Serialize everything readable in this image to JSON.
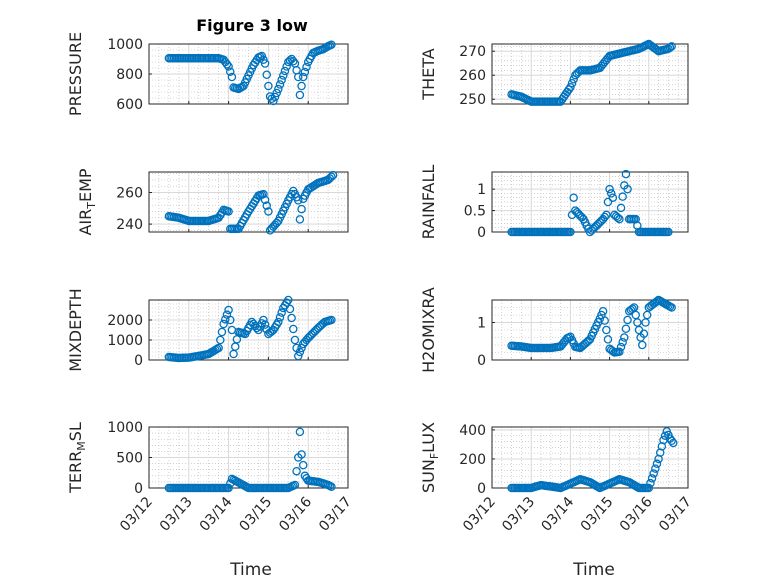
{
  "chart_data": {
    "type": "scatter",
    "title": "Figure 3 low",
    "marker": "circle",
    "marker_color": "#0072BD",
    "xlabel": "Time",
    "x_ticks": [
      "03/12",
      "03/13",
      "03/14",
      "03/15",
      "03/16",
      "03/17"
    ],
    "grid": "on (major and minor)",
    "panels": [
      {
        "name": "pressure",
        "ylabel": "PRESSURE",
        "ylim": [
          600,
          1000
        ],
        "yticks": [
          "600",
          "800",
          "1000"
        ],
        "points": [
          [
            "03/12 12:00",
            905
          ],
          [
            "03/12 18:00",
            905
          ],
          [
            "03/13 00:00",
            905
          ],
          [
            "03/13 06:00",
            905
          ],
          [
            "03/13 12:00",
            905
          ],
          [
            "03/13 18:00",
            905
          ],
          [
            "03/13 21:00",
            895
          ],
          [
            "03/14 00:00",
            850
          ],
          [
            "03/14 02:00",
            780
          ],
          [
            "03/14 03:00",
            710
          ],
          [
            "03/14 06:00",
            700
          ],
          [
            "03/14 09:00",
            720
          ],
          [
            "03/14 12:00",
            790
          ],
          [
            "03/14 15:00",
            860
          ],
          [
            "03/14 18:00",
            910
          ],
          [
            "03/14 20:00",
            920
          ],
          [
            "03/14 22:00",
            870
          ],
          [
            "03/15 00:00",
            720
          ],
          [
            "03/15 01:00",
            650
          ],
          [
            "03/15 03:00",
            620
          ],
          [
            "03/15 06:00",
            700
          ],
          [
            "03/15 09:00",
            790
          ],
          [
            "03/15 12:00",
            880
          ],
          [
            "03/15 14:00",
            900
          ],
          [
            "03/15 16:00",
            870
          ],
          [
            "03/15 18:00",
            780
          ],
          [
            "03/15 19:00",
            660
          ],
          [
            "03/15 21:00",
            780
          ],
          [
            "03/16 00:00",
            880
          ],
          [
            "03/16 03:00",
            940
          ],
          [
            "03/16 06:00",
            955
          ],
          [
            "03/16 09:00",
            965
          ],
          [
            "03/16 12:00",
            985
          ],
          [
            "03/16 14:00",
            995
          ]
        ]
      },
      {
        "name": "theta",
        "ylabel": "THETA",
        "ylim": [
          248,
          273
        ],
        "yticks": [
          "250",
          "260",
          "270"
        ],
        "points": [
          [
            "03/12 12:00",
            252
          ],
          [
            "03/12 18:00",
            251
          ],
          [
            "03/13 00:00",
            249
          ],
          [
            "03/13 06:00",
            249
          ],
          [
            "03/13 12:00",
            249
          ],
          [
            "03/13 18:00",
            249
          ],
          [
            "03/14 00:00",
            255
          ],
          [
            "03/14 03:00",
            260
          ],
          [
            "03/14 06:00",
            262
          ],
          [
            "03/14 12:00",
            262
          ],
          [
            "03/14 18:00",
            263
          ],
          [
            "03/15 00:00",
            268
          ],
          [
            "03/15 06:00",
            269
          ],
          [
            "03/15 12:00",
            270
          ],
          [
            "03/15 18:00",
            271
          ],
          [
            "03/16 00:00",
            273
          ],
          [
            "03/16 06:00",
            270
          ],
          [
            "03/16 12:00",
            271
          ],
          [
            "03/16 14:00",
            272
          ]
        ]
      },
      {
        "name": "air-temp",
        "ylabel": "AIR_TEMP",
        "ylim": [
          235,
          273
        ],
        "yticks": [
          "240",
          "260"
        ],
        "points": [
          [
            "03/12 12:00",
            245
          ],
          [
            "03/12 18:00",
            244
          ],
          [
            "03/13 00:00",
            242
          ],
          [
            "03/13 06:00",
            242
          ],
          [
            "03/13 12:00",
            242
          ],
          [
            "03/13 18:00",
            244
          ],
          [
            "03/13 21:00",
            249
          ],
          [
            "03/14 00:00",
            248
          ],
          [
            "03/14 01:00",
            237
          ],
          [
            "03/14 06:00",
            237
          ],
          [
            "03/14 12:00",
            248
          ],
          [
            "03/14 18:00",
            258
          ],
          [
            "03/14 21:00",
            259
          ],
          [
            "03/15 00:00",
            248
          ],
          [
            "03/15 01:00",
            236
          ],
          [
            "03/15 06:00",
            242
          ],
          [
            "03/15 12:00",
            255
          ],
          [
            "03/15 15:00",
            261
          ],
          [
            "03/15 18:00",
            255
          ],
          [
            "03/15 19:00",
            243
          ],
          [
            "03/15 21:00",
            256
          ],
          [
            "03/16 00:00",
            262
          ],
          [
            "03/16 06:00",
            266
          ],
          [
            "03/16 12:00",
            268
          ],
          [
            "03/16 15:00",
            271
          ]
        ]
      },
      {
        "name": "rainfall",
        "ylabel": "RAINFALL",
        "ylim": [
          0,
          1.4
        ],
        "yticks": [
          "0",
          "0.5",
          "1"
        ],
        "points": [
          [
            "03/12 12:00",
            0
          ],
          [
            "03/13 00:00",
            0
          ],
          [
            "03/13 12:00",
            0
          ],
          [
            "03/14 00:00",
            0
          ],
          [
            "03/14 02:00",
            0.8
          ],
          [
            "03/14 03:00",
            0.5
          ],
          [
            "03/14 08:00",
            0.3
          ],
          [
            "03/14 12:00",
            0
          ],
          [
            "03/14 20:00",
            0.3
          ],
          [
            "03/14 22:00",
            0.4
          ],
          [
            "03/15 00:00",
            1.0
          ],
          [
            "03/15 02:00",
            0.8
          ],
          [
            "03/15 03:00",
            0.4
          ],
          [
            "03/15 06:00",
            0.3
          ],
          [
            "03/15 10:00",
            1.35
          ],
          [
            "03/15 11:00",
            1.0
          ],
          [
            "03/15 12:00",
            0.3
          ],
          [
            "03/15 16:00",
            0.3
          ],
          [
            "03/15 18:00",
            0
          ],
          [
            "03/16 00:00",
            0
          ],
          [
            "03/16 12:00",
            0
          ]
        ]
      },
      {
        "name": "mixdepth",
        "ylabel": "MIXDEPTH",
        "ylim": [
          0,
          3000
        ],
        "yticks": [
          "0",
          "1000",
          "2000"
        ],
        "points": [
          [
            "03/12 12:00",
            150
          ],
          [
            "03/12 18:00",
            100
          ],
          [
            "03/13 00:00",
            120
          ],
          [
            "03/13 06:00",
            200
          ],
          [
            "03/13 12:00",
            300
          ],
          [
            "03/13 18:00",
            600
          ],
          [
            "03/13 21:00",
            1800
          ],
          [
            "03/14 00:00",
            2500
          ],
          [
            "03/14 02:00",
            1500
          ],
          [
            "03/14 03:00",
            300
          ],
          [
            "03/14 06:00",
            1400
          ],
          [
            "03/14 10:00",
            1300
          ],
          [
            "03/14 14:00",
            1900
          ],
          [
            "03/14 18:00",
            1500
          ],
          [
            "03/14 21:00",
            2000
          ],
          [
            "03/15 00:00",
            1300
          ],
          [
            "03/15 03:00",
            1500
          ],
          [
            "03/15 06:00",
            1900
          ],
          [
            "03/15 09:00",
            2600
          ],
          [
            "03/15 12:00",
            3000
          ],
          [
            "03/15 14:00",
            2100
          ],
          [
            "03/15 16:00",
            1000
          ],
          [
            "03/15 18:00",
            200
          ],
          [
            "03/15 21:00",
            800
          ],
          [
            "03/16 00:00",
            1100
          ],
          [
            "03/16 06:00",
            1600
          ],
          [
            "03/16 10:00",
            1900
          ],
          [
            "03/16 14:00",
            2000
          ]
        ]
      },
      {
        "name": "h2omixra",
        "ylabel": "H2OMIXRA",
        "ylim": [
          0,
          1.6
        ],
        "yticks": [
          "0",
          "1"
        ],
        "points": [
          [
            "03/12 12:00",
            0.38
          ],
          [
            "03/12 18:00",
            0.36
          ],
          [
            "03/13 00:00",
            0.32
          ],
          [
            "03/13 06:00",
            0.32
          ],
          [
            "03/13 12:00",
            0.32
          ],
          [
            "03/13 18:00",
            0.36
          ],
          [
            "03/13 22:00",
            0.58
          ],
          [
            "03/14 00:00",
            0.62
          ],
          [
            "03/14 03:00",
            0.35
          ],
          [
            "03/14 06:00",
            0.32
          ],
          [
            "03/14 12:00",
            0.55
          ],
          [
            "03/14 18:00",
            1.1
          ],
          [
            "03/14 20:00",
            1.3
          ],
          [
            "03/15 00:00",
            0.3
          ],
          [
            "03/15 03:00",
            0.2
          ],
          [
            "03/15 06:00",
            0.22
          ],
          [
            "03/15 09:00",
            0.6
          ],
          [
            "03/15 12:00",
            1.3
          ],
          [
            "03/15 15:00",
            1.4
          ],
          [
            "03/15 18:00",
            0.8
          ],
          [
            "03/15 20:00",
            0.4
          ],
          [
            "03/15 22:00",
            1.0
          ],
          [
            "03/16 00:00",
            1.4
          ],
          [
            "03/16 06:00",
            1.6
          ],
          [
            "03/16 10:00",
            1.5
          ],
          [
            "03/16 14:00",
            1.4
          ]
        ]
      },
      {
        "name": "terr-msl",
        "ylabel": "TERR_MSL",
        "ylim": [
          0,
          1000
        ],
        "yticks": [
          "0",
          "500",
          "1000"
        ],
        "points": [
          [
            "03/12 12:00",
            0
          ],
          [
            "03/13 00:00",
            0
          ],
          [
            "03/13 12:00",
            0
          ],
          [
            "03/14 00:00",
            0
          ],
          [
            "03/14 02:00",
            150
          ],
          [
            "03/14 12:00",
            0
          ],
          [
            "03/15 00:00",
            0
          ],
          [
            "03/15 12:00",
            0
          ],
          [
            "03/15 16:00",
            50
          ],
          [
            "03/15 18:00",
            500
          ],
          [
            "03/15 19:00",
            920
          ],
          [
            "03/15 20:00",
            550
          ],
          [
            "03/15 22:00",
            200
          ],
          [
            "03/16 00:00",
            120
          ],
          [
            "03/16 06:00",
            100
          ],
          [
            "03/16 12:00",
            50
          ],
          [
            "03/16 14:00",
            20
          ]
        ]
      },
      {
        "name": "sun-flux",
        "ylabel": "SUN_FLUX",
        "ylim": [
          0,
          420
        ],
        "yticks": [
          "0",
          "200",
          "400"
        ],
        "points": [
          [
            "03/12 12:00",
            0
          ],
          [
            "03/13 00:00",
            0
          ],
          [
            "03/13 06:00",
            20
          ],
          [
            "03/13 12:00",
            10
          ],
          [
            "03/13 18:00",
            0
          ],
          [
            "03/14 00:00",
            30
          ],
          [
            "03/14 06:00",
            60
          ],
          [
            "03/14 12:00",
            40
          ],
          [
            "03/14 18:00",
            0
          ],
          [
            "03/15 00:00",
            30
          ],
          [
            "03/15 06:00",
            60
          ],
          [
            "03/15 12:00",
            40
          ],
          [
            "03/15 18:00",
            0
          ],
          [
            "03/16 00:00",
            0
          ],
          [
            "03/16 03:00",
            100
          ],
          [
            "03/16 06:00",
            200
          ],
          [
            "03/16 09:00",
            330
          ],
          [
            "03/16 11:00",
            390
          ],
          [
            "03/16 13:00",
            340
          ],
          [
            "03/16 15:00",
            310
          ]
        ]
      }
    ]
  }
}
